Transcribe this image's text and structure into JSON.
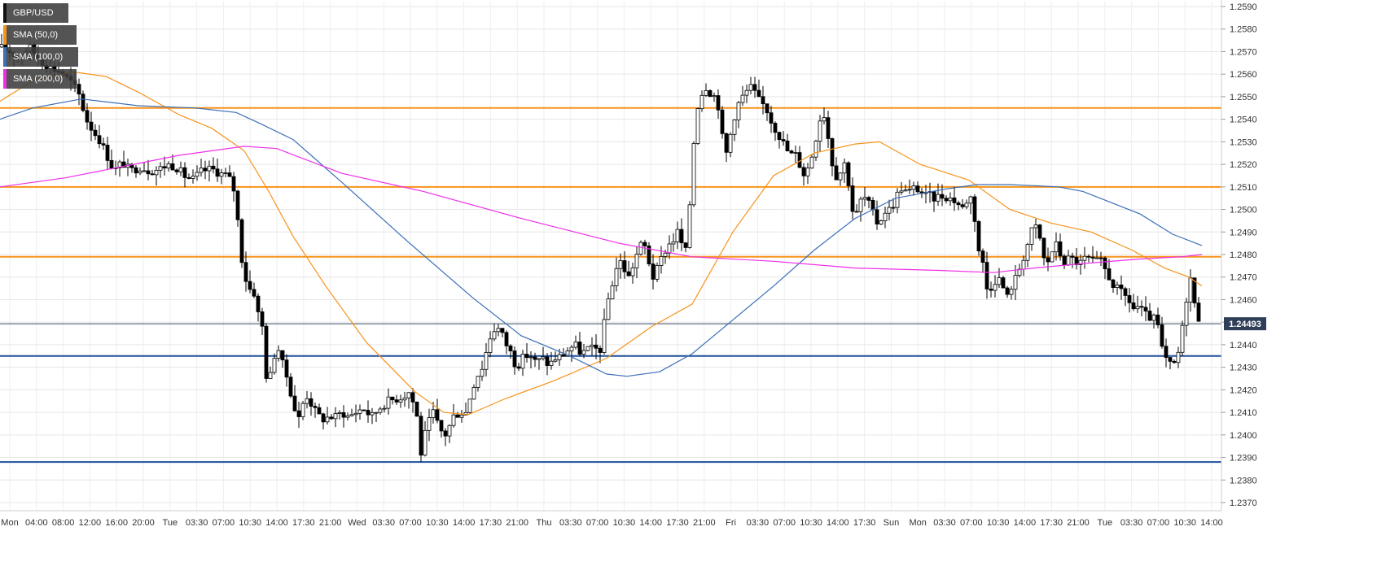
{
  "symbol": "GBP/USD",
  "indicators": [
    {
      "label": "SMA (50,0)",
      "color": "#f7931a"
    },
    {
      "label": "SMA (100,0)",
      "color": "#3b6fb6"
    },
    {
      "label": "SMA (200,0)",
      "color": "#ee2fe8"
    }
  ],
  "current_price_label": "1.24493",
  "colors": {
    "up_candle": "#ffffff",
    "down_candle": "#000000",
    "orange_level": "#f7931a",
    "blue_level": "#1f4e9c",
    "sma50": "#f7931a",
    "sma100": "#3b6fb6",
    "sma200": "#ee2fe8",
    "price_tag": "#2f3f58",
    "grid": "#e6e6e6"
  },
  "chart_data": {
    "type": "candlestick",
    "title": "GBP/USD",
    "ylim": [
      1.2365,
      1.2592
    ],
    "y_ticks": [
      "1.2370",
      "1.2380",
      "1.2390",
      "1.2400",
      "1.2410",
      "1.2420",
      "1.2430",
      "1.2440",
      "1.2450",
      "1.2460",
      "1.2470",
      "1.2480",
      "1.2490",
      "1.2500",
      "1.2510",
      "1.2520",
      "1.2530",
      "1.2540",
      "1.2550",
      "1.2560",
      "1.2570",
      "1.2580",
      "1.2590"
    ],
    "x_ticks": [
      "Mon",
      "04:00",
      "08:00",
      "12:00",
      "16:00",
      "20:00",
      "Tue",
      "03:30",
      "07:00",
      "10:30",
      "14:00",
      "17:30",
      "21:00",
      "Wed",
      "03:30",
      "07:00",
      "10:30",
      "14:00",
      "17:30",
      "21:00",
      "Thu",
      "03:30",
      "07:00",
      "10:30",
      "14:00",
      "17:30",
      "21:00",
      "Fri",
      "03:30",
      "07:00",
      "10:30",
      "14:00",
      "17:30",
      "Sun",
      "Mon",
      "03:30",
      "07:00",
      "10:30",
      "14:00",
      "17:30",
      "21:00",
      "Tue",
      "03:30",
      "07:00",
      "10:30",
      "14:00"
    ],
    "horizontal_levels": [
      {
        "value": 1.2545,
        "color": "orange"
      },
      {
        "value": 1.251,
        "color": "orange"
      },
      {
        "value": 1.2479,
        "color": "orange"
      },
      {
        "value": 1.2435,
        "color": "blue"
      },
      {
        "value": 1.2388,
        "color": "blue"
      }
    ],
    "current_price": 1.24493,
    "price_path": [
      [
        0,
        1.2572
      ],
      [
        12,
        1.257
      ],
      [
        22,
        1.2568
      ],
      [
        36,
        1.2572
      ],
      [
        50,
        1.2566
      ],
      [
        62,
        1.2563
      ],
      [
        75,
        1.2561
      ],
      [
        88,
        1.2556
      ],
      [
        96,
        1.2552
      ],
      [
        106,
        1.254
      ],
      [
        114,
        1.2535
      ],
      [
        122,
        1.2531
      ],
      [
        130,
        1.2525
      ],
      [
        140,
        1.2517
      ],
      [
        150,
        1.2521
      ],
      [
        160,
        1.2517
      ],
      [
        172,
        1.2519
      ],
      [
        184,
        1.2517
      ],
      [
        196,
        1.2518
      ],
      [
        206,
        1.252
      ],
      [
        216,
        1.2519
      ],
      [
        226,
        1.2515
      ],
      [
        236,
        1.2513
      ],
      [
        248,
        1.2517
      ],
      [
        260,
        1.2518
      ],
      [
        270,
        1.2516
      ],
      [
        280,
        1.2515
      ],
      [
        288,
        1.2508
      ],
      [
        292,
        1.2495
      ],
      [
        296,
        1.248
      ],
      [
        301,
        1.247
      ],
      [
        306,
        1.2465
      ],
      [
        312,
        1.2463
      ],
      [
        318,
        1.2452
      ],
      [
        322,
        1.2448
      ],
      [
        326,
        1.2428
      ],
      [
        330,
        1.2422
      ],
      [
        336,
        1.2435
      ],
      [
        342,
        1.2438
      ],
      [
        348,
        1.243
      ],
      [
        354,
        1.2424
      ],
      [
        360,
        1.2414
      ],
      [
        366,
        1.2406
      ],
      [
        372,
        1.2414
      ],
      [
        378,
        1.2418
      ],
      [
        384,
        1.2412
      ],
      [
        390,
        1.2409
      ],
      [
        396,
        1.2407
      ],
      [
        404,
        1.2408
      ],
      [
        412,
        1.2408
      ],
      [
        420,
        1.241
      ],
      [
        428,
        1.2408
      ],
      [
        436,
        1.241
      ],
      [
        446,
        1.2412
      ],
      [
        456,
        1.2408
      ],
      [
        466,
        1.2412
      ],
      [
        476,
        1.2415
      ],
      [
        486,
        1.2416
      ],
      [
        494,
        1.2417
      ],
      [
        502,
        1.2419
      ],
      [
        508,
        1.2414
      ],
      [
        512,
        1.2408
      ],
      [
        516,
        1.239
      ],
      [
        520,
        1.2398
      ],
      [
        526,
        1.2405
      ],
      [
        532,
        1.241
      ],
      [
        540,
        1.2402
      ],
      [
        548,
        1.24
      ],
      [
        556,
        1.2408
      ],
      [
        564,
        1.241
      ],
      [
        572,
        1.241
      ],
      [
        578,
        1.2418
      ],
      [
        584,
        1.2425
      ],
      [
        592,
        1.243
      ],
      [
        598,
        1.2438
      ],
      [
        604,
        1.2446
      ],
      [
        610,
        1.2448
      ],
      [
        616,
        1.2445
      ],
      [
        622,
        1.244
      ],
      [
        628,
        1.2436
      ],
      [
        634,
        1.243
      ],
      [
        642,
        1.2434
      ],
      [
        650,
        1.2436
      ],
      [
        658,
        1.2432
      ],
      [
        666,
        1.2434
      ],
      [
        674,
        1.2431
      ],
      [
        682,
        1.2434
      ],
      [
        690,
        1.2435
      ],
      [
        698,
        1.2438
      ],
      [
        706,
        1.244
      ],
      [
        714,
        1.2436
      ],
      [
        722,
        1.2438
      ],
      [
        730,
        1.2438
      ],
      [
        738,
        1.2438
      ],
      [
        744,
        1.2455
      ],
      [
        748,
        1.2462
      ],
      [
        754,
        1.247
      ],
      [
        760,
        1.2478
      ],
      [
        766,
        1.2474
      ],
      [
        772,
        1.247
      ],
      [
        778,
        1.2476
      ],
      [
        784,
        1.2482
      ],
      [
        790,
        1.2486
      ],
      [
        796,
        1.2478
      ],
      [
        802,
        1.247
      ],
      [
        808,
        1.2474
      ],
      [
        814,
        1.248
      ],
      [
        820,
        1.2484
      ],
      [
        826,
        1.2486
      ],
      [
        832,
        1.249
      ],
      [
        838,
        1.2484
      ],
      [
        844,
        1.248
      ],
      [
        848,
        1.251
      ],
      [
        852,
        1.253
      ],
      [
        856,
        1.2545
      ],
      [
        860,
        1.255
      ],
      [
        866,
        1.2555
      ],
      [
        872,
        1.2552
      ],
      [
        878,
        1.255
      ],
      [
        884,
        1.2544
      ],
      [
        888,
        1.2528
      ],
      [
        892,
        1.2525
      ],
      [
        898,
        1.2535
      ],
      [
        904,
        1.2545
      ],
      [
        910,
        1.2549
      ],
      [
        916,
        1.2552
      ],
      [
        922,
        1.2554
      ],
      [
        928,
        1.2551
      ],
      [
        934,
        1.2547
      ],
      [
        940,
        1.2546
      ],
      [
        946,
        1.254
      ],
      [
        952,
        1.2536
      ],
      [
        958,
        1.2532
      ],
      [
        964,
        1.2528
      ],
      [
        970,
        1.2524
      ],
      [
        976,
        1.2525
      ],
      [
        982,
        1.252
      ],
      [
        988,
        1.2515
      ],
      [
        994,
        1.252
      ],
      [
        1000,
        1.2528
      ],
      [
        1006,
        1.254
      ],
      [
        1012,
        1.2542
      ],
      [
        1018,
        1.253
      ],
      [
        1024,
        1.2516
      ],
      [
        1030,
        1.2514
      ],
      [
        1036,
        1.2522
      ],
      [
        1042,
        1.2512
      ],
      [
        1046,
        1.25
      ],
      [
        1052,
        1.2498
      ],
      [
        1058,
        1.2505
      ],
      [
        1064,
        1.2505
      ],
      [
        1070,
        1.25
      ],
      [
        1076,
        1.2494
      ],
      [
        1082,
        1.2496
      ],
      [
        1088,
        1.25
      ],
      [
        1094,
        1.25
      ],
      [
        1100,
        1.2505
      ],
      [
        1106,
        1.251
      ],
      [
        1112,
        1.2508
      ],
      [
        1118,
        1.2508
      ],
      [
        1124,
        1.251
      ],
      [
        1130,
        1.2508
      ],
      [
        1136,
        1.2506
      ],
      [
        1142,
        1.2506
      ],
      [
        1148,
        1.2505
      ],
      [
        1154,
        1.2506
      ],
      [
        1160,
        1.2506
      ],
      [
        1166,
        1.2505
      ],
      [
        1172,
        1.2504
      ],
      [
        1178,
        1.2502
      ],
      [
        1184,
        1.25
      ],
      [
        1190,
        1.2508
      ],
      [
        1196,
        1.25
      ],
      [
        1200,
        1.2484
      ],
      [
        1206,
        1.2478
      ],
      [
        1212,
        1.2465
      ],
      [
        1218,
        1.2466
      ],
      [
        1224,
        1.247
      ],
      [
        1230,
        1.2468
      ],
      [
        1236,
        1.246
      ],
      [
        1242,
        1.2466
      ],
      [
        1248,
        1.247
      ],
      [
        1254,
        1.2476
      ],
      [
        1260,
        1.2482
      ],
      [
        1266,
        1.249
      ],
      [
        1272,
        1.2492
      ],
      [
        1278,
        1.2486
      ],
      [
        1284,
        1.2474
      ],
      [
        1290,
        1.248
      ],
      [
        1296,
        1.2485
      ],
      [
        1302,
        1.248
      ],
      [
        1308,
        1.2476
      ],
      [
        1314,
        1.2479
      ],
      [
        1320,
        1.2477
      ],
      [
        1326,
        1.2476
      ],
      [
        1332,
        1.2478
      ],
      [
        1338,
        1.2478
      ],
      [
        1344,
        1.2476
      ],
      [
        1350,
        1.2478
      ],
      [
        1356,
        1.2474
      ],
      [
        1362,
        1.247
      ],
      [
        1368,
        1.2466
      ],
      [
        1374,
        1.2464
      ],
      [
        1380,
        1.2462
      ],
      [
        1386,
        1.246
      ],
      [
        1392,
        1.2456
      ],
      [
        1398,
        1.2457
      ],
      [
        1404,
        1.2454
      ],
      [
        1410,
        1.2452
      ],
      [
        1416,
        1.2452
      ],
      [
        1422,
        1.2448
      ],
      [
        1428,
        1.2436
      ],
      [
        1434,
        1.2432
      ],
      [
        1440,
        1.243
      ],
      [
        1446,
        1.2434
      ],
      [
        1450,
        1.2444
      ],
      [
        1455,
        1.2452
      ],
      [
        1460,
        1.2474
      ],
      [
        1464,
        1.2465
      ],
      [
        1468,
        1.2455
      ],
      [
        1472,
        1.2452
      ],
      [
        1476,
        1.2449
      ]
    ],
    "sma50_path": [
      [
        0,
        1.2548
      ],
      [
        40,
        1.2557
      ],
      [
        90,
        1.2561
      ],
      [
        130,
        1.2559
      ],
      [
        170,
        1.2552
      ],
      [
        220,
        1.2542
      ],
      [
        260,
        1.2536
      ],
      [
        300,
        1.2526
      ],
      [
        330,
        1.2508
      ],
      [
        360,
        1.2488
      ],
      [
        400,
        1.2466
      ],
      [
        450,
        1.2441
      ],
      [
        510,
        1.2419
      ],
      [
        545,
        1.241
      ],
      [
        575,
        1.2409
      ],
      [
        620,
        1.2416
      ],
      [
        680,
        1.2424
      ],
      [
        745,
        1.2434
      ],
      [
        800,
        1.2448
      ],
      [
        850,
        1.2458
      ],
      [
        900,
        1.249
      ],
      [
        950,
        1.2515
      ],
      [
        1000,
        1.2525
      ],
      [
        1050,
        1.2529
      ],
      [
        1080,
        1.253
      ],
      [
        1130,
        1.252
      ],
      [
        1190,
        1.2513
      ],
      [
        1240,
        1.25
      ],
      [
        1290,
        1.2494
      ],
      [
        1340,
        1.249
      ],
      [
        1390,
        1.2482
      ],
      [
        1430,
        1.2474
      ],
      [
        1460,
        1.247
      ],
      [
        1476,
        1.2466
      ]
    ],
    "sma100_path": [
      [
        0,
        1.254
      ],
      [
        40,
        1.2545
      ],
      [
        100,
        1.2549
      ],
      [
        170,
        1.2546
      ],
      [
        240,
        1.2545
      ],
      [
        290,
        1.2543
      ],
      [
        320,
        1.2538
      ],
      [
        360,
        1.2531
      ],
      [
        420,
        1.2512
      ],
      [
        500,
        1.2486
      ],
      [
        580,
        1.2461
      ],
      [
        640,
        1.2444
      ],
      [
        700,
        1.2435
      ],
      [
        745,
        1.2427
      ],
      [
        770,
        1.2426
      ],
      [
        810,
        1.2428
      ],
      [
        850,
        1.2436
      ],
      [
        900,
        1.2451
      ],
      [
        950,
        1.2466
      ],
      [
        1000,
        1.2482
      ],
      [
        1050,
        1.2496
      ],
      [
        1100,
        1.2505
      ],
      [
        1160,
        1.2509
      ],
      [
        1200,
        1.2511
      ],
      [
        1240,
        1.2511
      ],
      [
        1300,
        1.251
      ],
      [
        1330,
        1.2508
      ],
      [
        1400,
        1.2498
      ],
      [
        1440,
        1.2489
      ],
      [
        1476,
        1.2484
      ]
    ],
    "sma200_path": [
      [
        0,
        1.251
      ],
      [
        80,
        1.2514
      ],
      [
        150,
        1.2519
      ],
      [
        220,
        1.2524
      ],
      [
        300,
        1.2528
      ],
      [
        340,
        1.2527
      ],
      [
        420,
        1.2516
      ],
      [
        520,
        1.2508
      ],
      [
        640,
        1.2496
      ],
      [
        760,
        1.2485
      ],
      [
        850,
        1.2479
      ],
      [
        950,
        1.2477
      ],
      [
        1050,
        1.2474
      ],
      [
        1150,
        1.2473
      ],
      [
        1220,
        1.2472
      ],
      [
        1270,
        1.2474
      ],
      [
        1330,
        1.2476
      ],
      [
        1400,
        1.2478
      ],
      [
        1450,
        1.2479
      ],
      [
        1476,
        1.248
      ]
    ]
  }
}
